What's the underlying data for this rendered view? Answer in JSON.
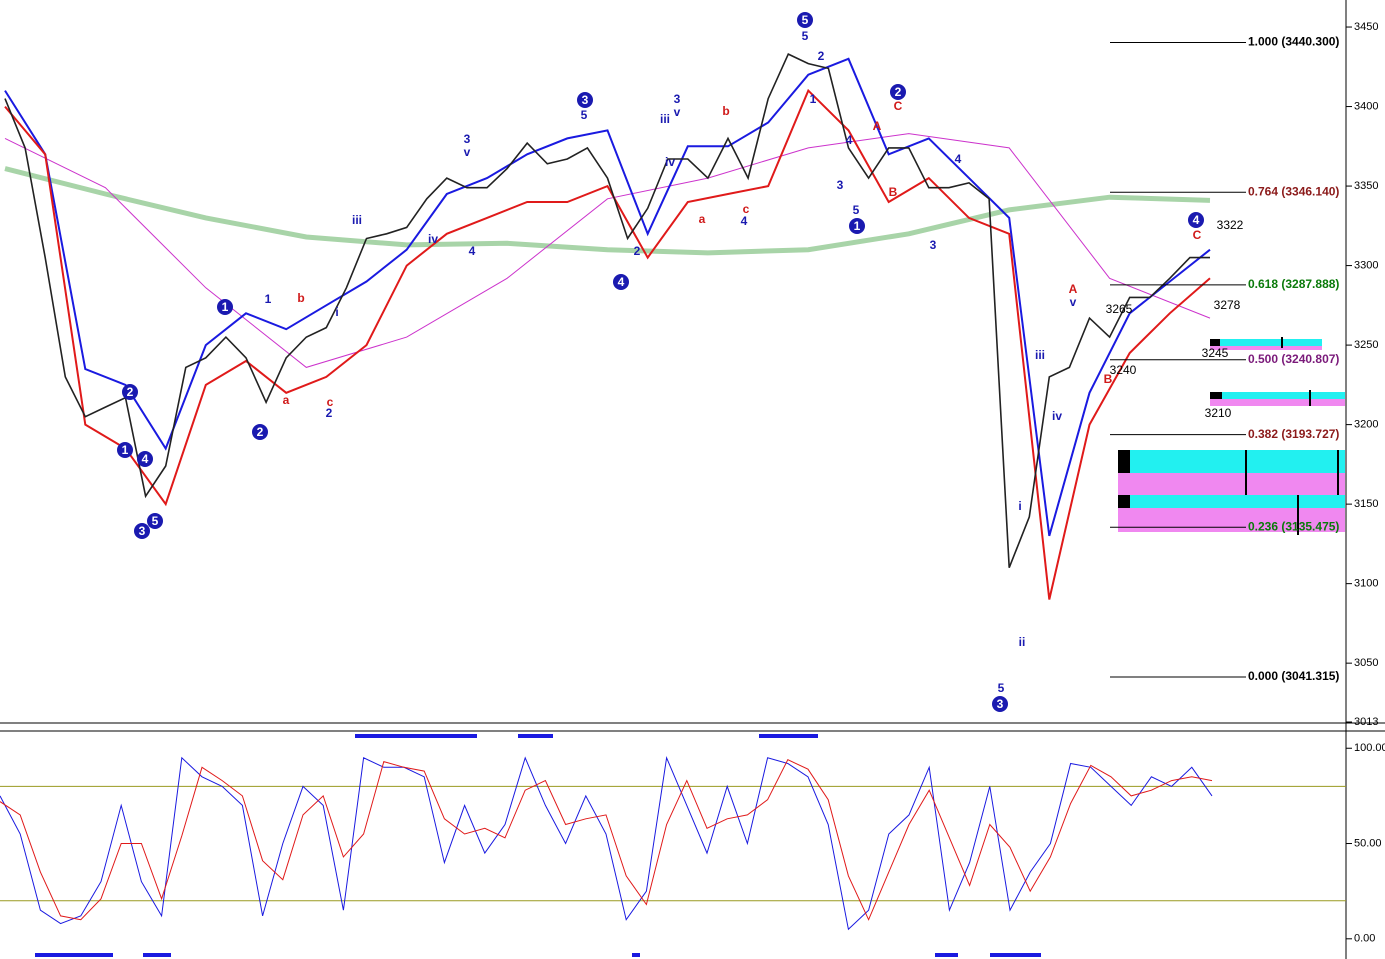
{
  "chart_data": [
    {
      "type": "line",
      "ylim": [
        3013,
        3467
      ],
      "yticks": [
        3013,
        3050,
        3100,
        3150,
        3200,
        3250,
        3300,
        3350,
        3400,
        3450
      ],
      "series": [
        {
          "color": "#222222",
          "width": 1.6,
          "values": [
            3405,
            3374,
            3305,
            3230,
            3205,
            3211,
            3217,
            3155,
            3174,
            3236,
            3242,
            3255,
            3242,
            3214,
            3242,
            3255,
            3261,
            3286,
            3317,
            3320,
            3324,
            3342,
            3355,
            3349,
            3349,
            3361,
            3377,
            3364,
            3367,
            3374,
            3355,
            3317,
            3336,
            3367,
            3367,
            3355,
            3380,
            3355,
            3405,
            3433,
            3427,
            3424,
            3374,
            3355,
            3374,
            3374,
            3349,
            3349,
            3352,
            3342,
            3110,
            3142,
            3230,
            3236,
            3267,
            3255,
            3280,
            3280,
            3292,
            3305,
            3305
          ]
        },
        {
          "color": "#1a1ae0",
          "width": 2,
          "values": [
            3410,
            3370,
            3235,
            3225,
            3185,
            3250,
            3270,
            3260,
            3275,
            3290,
            3310,
            3345,
            3355,
            3370,
            3380,
            3385,
            3320,
            3375,
            3375,
            3390,
            3420,
            3430,
            3370,
            3380,
            3355,
            3330,
            3130,
            3220,
            3270,
            3290,
            3310
          ]
        },
        {
          "color": "#e01a1a",
          "width": 2,
          "values": [
            3400,
            3370,
            3200,
            3185,
            3150,
            3225,
            3240,
            3220,
            3230,
            3250,
            3300,
            3320,
            3330,
            3340,
            3340,
            3350,
            3305,
            3340,
            3345,
            3350,
            3410,
            3385,
            3340,
            3355,
            3330,
            3320,
            3090,
            3200,
            3245,
            3270,
            3292
          ]
        },
        {
          "color": "#a8d4a8",
          "width": 5,
          "values": [
            3361,
            3345,
            3330,
            3318,
            3313,
            3314,
            3310,
            3308,
            3310,
            3320,
            3335,
            3343,
            3341
          ]
        },
        {
          "color": "#cc33cc",
          "width": 1,
          "values": [
            3380,
            3349,
            3286,
            3236,
            3255,
            3292,
            3342,
            3355,
            3374,
            3383,
            3374,
            3292,
            3267
          ]
        }
      ],
      "fib_levels": [
        {
          "label": "1.000 (3440.300)",
          "value": 3440.3,
          "color": "#000000"
        },
        {
          "label": "0.764 (3346.140)",
          "value": 3346.14,
          "color": "#8b1a1a"
        },
        {
          "label": "0.618 (3287.888)",
          "value": 3287.888,
          "color": "#0a7a0a"
        },
        {
          "label": "0.500 (3240.807)",
          "value": 3240.807,
          "color": "#7a1a7a"
        },
        {
          "label": "0.382 (3193.727)",
          "value": 3193.727,
          "color": "#8b1a1a"
        },
        {
          "label": "0.236 (3135.475)",
          "value": 3135.475,
          "color": "#0a7a0a"
        },
        {
          "label": "0.000 (3041.315)",
          "value": 3041.315,
          "color": "#000000"
        }
      ],
      "circled_labels": [
        "1",
        "2",
        "1",
        "4",
        "3",
        "5",
        "2",
        "3",
        "4",
        "5",
        "2",
        "1",
        "3",
        "4"
      ],
      "wave_labels": [
        {
          "text": "5",
          "color": "#1a1ab0"
        },
        {
          "text": "2",
          "color": "#1a1ab0"
        },
        {
          "text": "1",
          "color": "#1a1ab0"
        },
        {
          "text": "3",
          "color": "#1a1ab0"
        },
        {
          "text": "v",
          "color": "#1a1ab0"
        },
        {
          "text": "iii",
          "color": "#1a1ab0"
        },
        {
          "text": "iv",
          "color": "#1a1ab0"
        },
        {
          "text": "4",
          "color": "#1a1ab0"
        },
        {
          "text": "5",
          "color": "#1a1ab0"
        },
        {
          "text": "3",
          "color": "#1a1ab0"
        },
        {
          "text": "v",
          "color": "#1a1ab0"
        },
        {
          "text": "iii",
          "color": "#1a1ab0"
        },
        {
          "text": "iv",
          "color": "#1a1ab0"
        },
        {
          "text": "2",
          "color": "#1a1ab0"
        },
        {
          "text": "1",
          "color": "#1a1ab0"
        },
        {
          "text": "i",
          "color": "#1a1ab0"
        },
        {
          "text": "2",
          "color": "#1a1ab0"
        },
        {
          "text": "4",
          "color": "#1a1ab0"
        },
        {
          "text": "4",
          "color": "#1a1ab0"
        },
        {
          "text": "5",
          "color": "#1a1ab0"
        },
        {
          "text": "3",
          "color": "#1a1ab0"
        },
        {
          "text": "4",
          "color": "#1a1ab0"
        },
        {
          "text": "3",
          "color": "#1a1ab0"
        },
        {
          "text": "5",
          "color": "#1a1ab0"
        },
        {
          "text": "ii",
          "color": "#1a1ab0"
        },
        {
          "text": "iii",
          "color": "#1a1ab0"
        },
        {
          "text": "iv",
          "color": "#1a1ab0"
        },
        {
          "text": "v",
          "color": "#1a1ab0"
        },
        {
          "text": "i",
          "color": "#1a1ab0"
        },
        {
          "text": "b",
          "color": "#d01a1a"
        },
        {
          "text": "a",
          "color": "#d01a1a"
        },
        {
          "text": "c",
          "color": "#d01a1a"
        },
        {
          "text": "b",
          "color": "#d01a1a"
        },
        {
          "text": "a",
          "color": "#d01a1a"
        },
        {
          "text": "c",
          "color": "#d01a1a"
        },
        {
          "text": "A",
          "color": "#d01a1a"
        },
        {
          "text": "B",
          "color": "#d01a1a"
        },
        {
          "text": "C",
          "color": "#d01a1a"
        },
        {
          "text": "A",
          "color": "#d01a1a"
        },
        {
          "text": "B",
          "color": "#d01a1a"
        },
        {
          "text": "C",
          "color": "#d01a1a"
        }
      ],
      "price_labels": [
        "3322",
        "3278",
        "3265",
        "3245",
        "3240",
        "3210"
      ]
    },
    {
      "type": "line",
      "ylim": [
        -8.5,
        108
      ],
      "yticks": [
        {
          "value": 0,
          "label": "0.00"
        },
        {
          "value": 50,
          "label": "50.00"
        },
        {
          "value": 100,
          "label": "100.00"
        }
      ],
      "hlines": [
        80,
        20
      ],
      "hline_color": "#9a9a20",
      "series": [
        {
          "color": "#1a1ae0",
          "width": 1,
          "values": [
            75,
            55,
            15,
            8,
            12,
            30,
            70,
            30,
            12,
            95,
            85,
            80,
            70,
            12,
            50,
            80,
            70,
            15,
            95,
            90,
            90,
            85,
            40,
            70,
            45,
            60,
            95,
            70,
            50,
            75,
            55,
            10,
            25,
            95,
            70,
            45,
            80,
            50,
            95,
            92,
            85,
            60,
            5,
            15,
            55,
            65,
            90,
            15,
            40,
            80,
            15,
            35,
            50,
            92,
            90,
            80,
            70,
            85,
            80,
            90,
            75
          ]
        },
        {
          "color": "#e01a1a",
          "width": 1,
          "values": [
            72,
            65,
            35,
            12,
            10,
            21,
            50,
            50,
            21,
            54,
            90,
            83,
            75,
            41,
            31,
            65,
            75,
            43,
            55,
            93,
            90,
            88,
            63,
            55,
            58,
            53,
            78,
            83,
            60,
            63,
            65,
            33,
            18,
            60,
            83,
            58,
            63,
            65,
            73,
            94,
            89,
            73,
            33,
            10,
            35,
            60,
            78,
            53,
            28,
            60,
            48,
            25,
            43,
            71,
            91,
            85,
            75,
            78,
            83,
            85,
            83
          ]
        }
      ]
    }
  ]
}
